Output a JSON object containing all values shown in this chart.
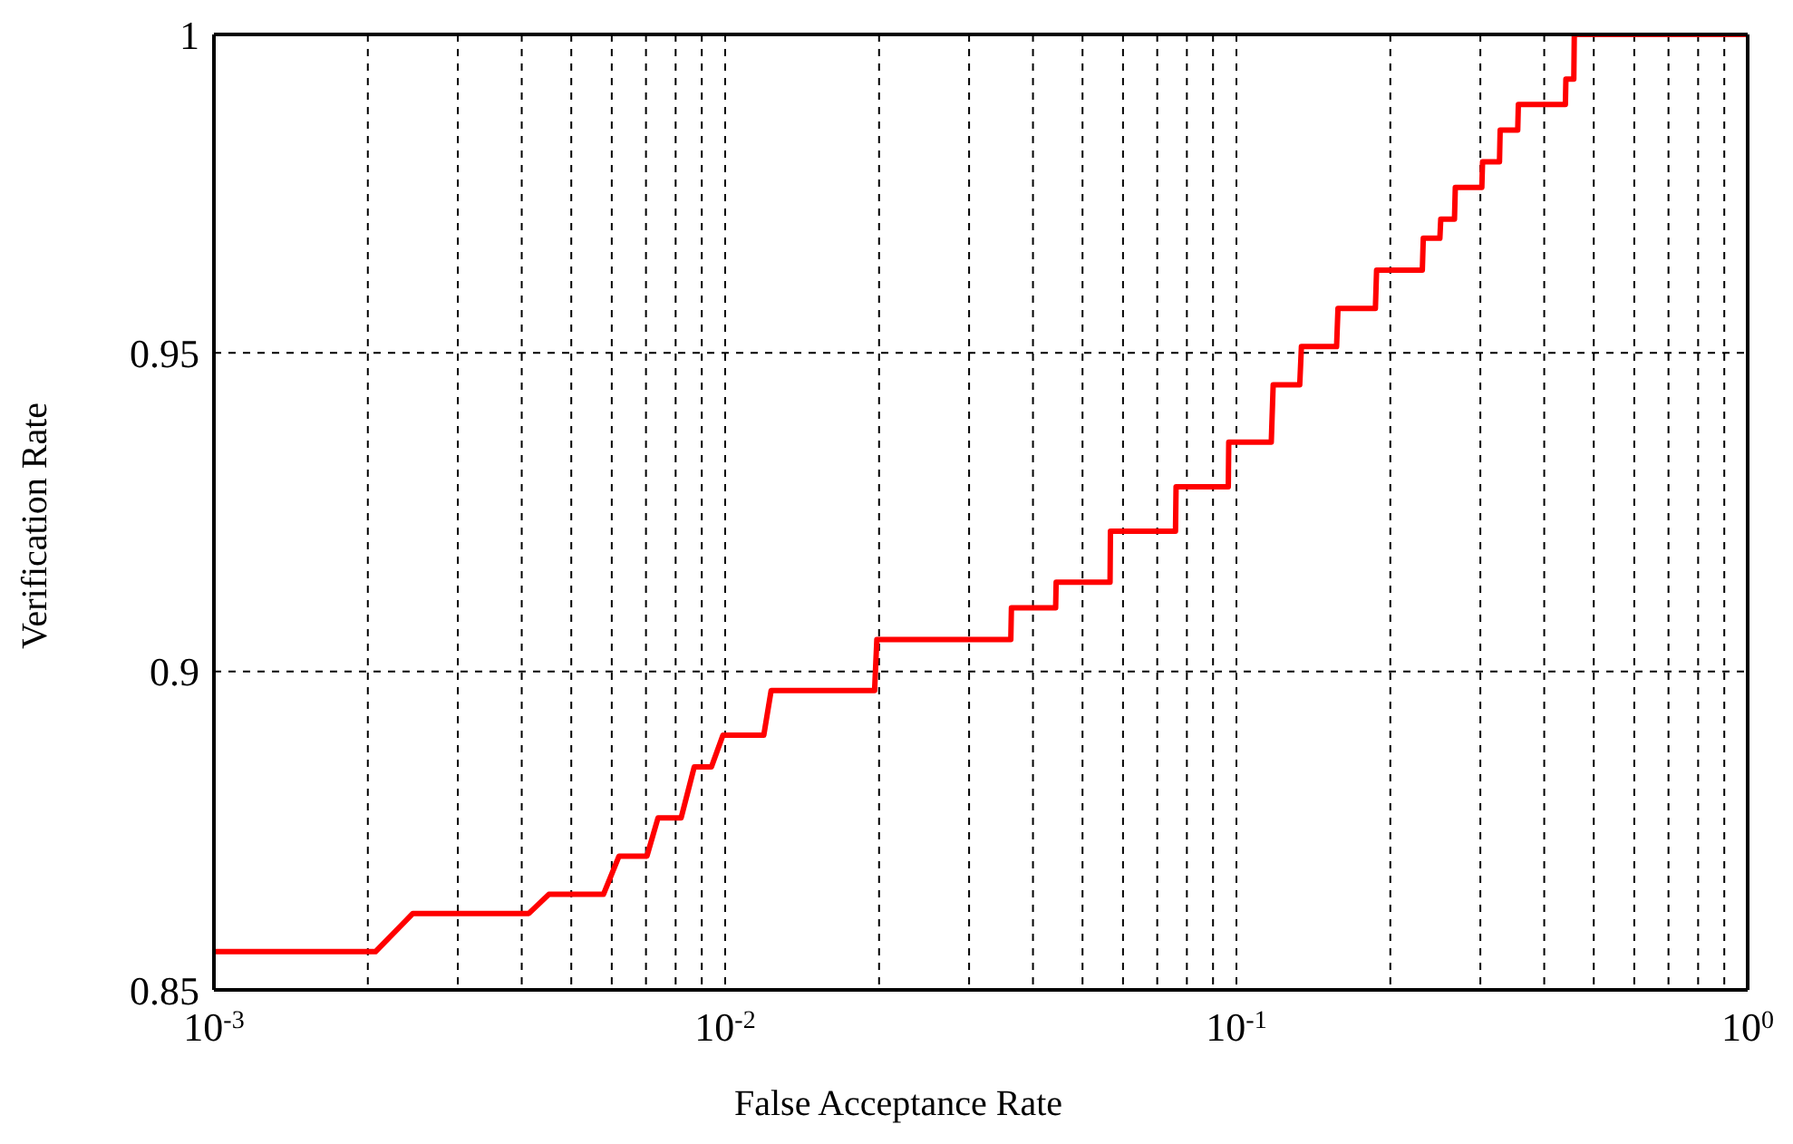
{
  "chart_data": {
    "type": "line",
    "xlabel": "False Acceptance Rate",
    "ylabel": "Verification Rate",
    "log": "x",
    "grid": true,
    "marker": "none",
    "line_style": "solid",
    "xlim": [
      0.001,
      1
    ],
    "ylim": [
      0.85,
      1
    ],
    "xticks": [
      {
        "value": 0.001,
        "label": "10$^{-3}$"
      },
      {
        "value": 0.002,
        "label": null
      },
      {
        "value": 0.003,
        "label": null
      },
      {
        "value": 0.004,
        "label": null
      },
      {
        "value": 0.005,
        "label": null
      },
      {
        "value": 0.006,
        "label": null
      },
      {
        "value": 0.007,
        "label": null
      },
      {
        "value": 0.008,
        "label": null
      },
      {
        "value": 0.009,
        "label": null
      },
      {
        "value": 0.01,
        "label": "10$^{-2}$"
      },
      {
        "value": 0.02,
        "label": null
      },
      {
        "value": 0.03,
        "label": null
      },
      {
        "value": 0.04,
        "label": null
      },
      {
        "value": 0.05,
        "label": null
      },
      {
        "value": 0.06,
        "label": null
      },
      {
        "value": 0.07,
        "label": null
      },
      {
        "value": 0.08,
        "label": null
      },
      {
        "value": 0.09,
        "label": null
      },
      {
        "value": 0.1,
        "label": "10$^{-1}$"
      },
      {
        "value": 0.2,
        "label": null
      },
      {
        "value": 0.3,
        "label": null
      },
      {
        "value": 0.4,
        "label": null
      },
      {
        "value": 0.5,
        "label": null
      },
      {
        "value": 0.6,
        "label": null
      },
      {
        "value": 0.7,
        "label": null
      },
      {
        "value": 0.8,
        "label": null
      },
      {
        "value": 0.9,
        "label": null
      },
      {
        "value": 1,
        "label": "10$^{0}$"
      }
    ],
    "yticks": [
      0.85,
      0.9,
      0.95,
      1
    ],
    "series": [
      {
        "color": "#ff0000",
        "x": [
          0.001,
          0.00207,
          0.00245,
          0.00413,
          0.00452,
          0.00578,
          0.0062,
          0.00703,
          0.00739,
          0.0082,
          0.0087,
          0.0094,
          0.0099,
          0.0119,
          0.0123,
          0.0196,
          0.0198,
          0.0362,
          0.0363,
          0.0443,
          0.0444,
          0.0566,
          0.0567,
          0.076,
          0.0762,
          0.0964,
          0.0966,
          0.117,
          0.118,
          0.133,
          0.134,
          0.157,
          0.158,
          0.187,
          0.188,
          0.231,
          0.232,
          0.25,
          0.251,
          0.267,
          0.268,
          0.302,
          0.303,
          0.327,
          0.328,
          0.355,
          0.356,
          0.44,
          0.441,
          0.457,
          0.458,
          1
        ],
        "values": [
          0.856,
          0.856,
          0.862,
          0.862,
          0.865,
          0.865,
          0.871,
          0.871,
          0.877,
          0.877,
          0.885,
          0.885,
          0.89,
          0.89,
          0.897,
          0.897,
          0.905,
          0.905,
          0.91,
          0.91,
          0.914,
          0.914,
          0.922,
          0.922,
          0.929,
          0.929,
          0.936,
          0.936,
          0.945,
          0.945,
          0.951,
          0.951,
          0.957,
          0.957,
          0.963,
          0.963,
          0.968,
          0.968,
          0.971,
          0.971,
          0.976,
          0.976,
          0.98,
          0.98,
          0.985,
          0.985,
          0.989,
          0.989,
          0.993,
          0.993,
          1,
          1
        ]
      }
    ]
  }
}
